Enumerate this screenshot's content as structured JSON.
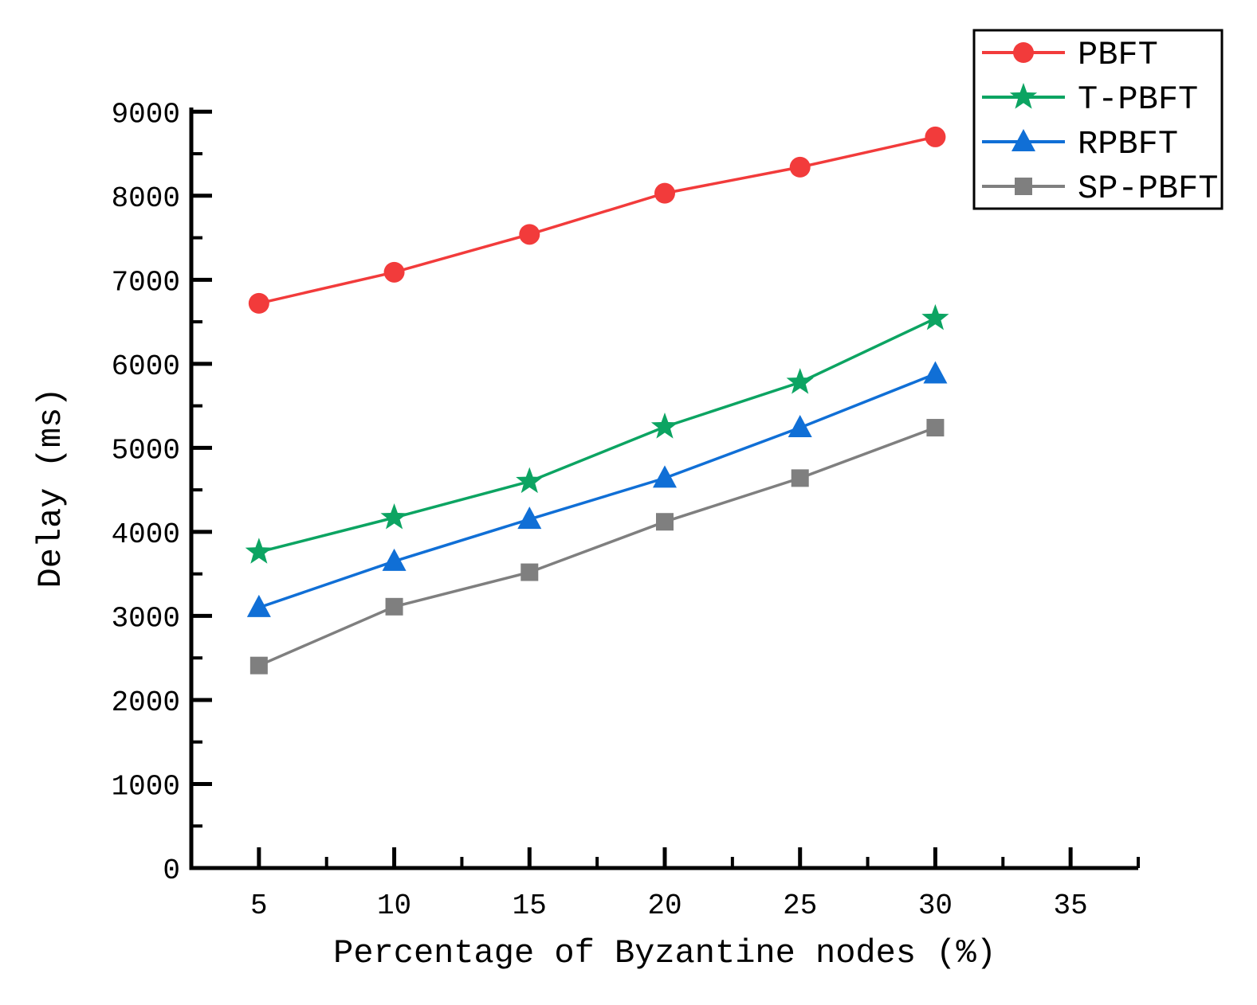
{
  "chart_data": {
    "type": "line",
    "title": "",
    "xlabel": "Percentage of Byzantine nodes (%)",
    "ylabel": "Delay (ms)",
    "x": [
      5,
      10,
      15,
      20,
      25,
      30
    ],
    "series": [
      {
        "name": "PBFT",
        "marker": "circle",
        "color": "#f23b3b",
        "values": [
          6720,
          7090,
          7540,
          8030,
          8340,
          8700
        ]
      },
      {
        "name": "T-PBFT",
        "marker": "star",
        "color": "#0ca462",
        "values": [
          3760,
          4170,
          4600,
          5250,
          5780,
          6540
        ]
      },
      {
        "name": "RPBFT",
        "marker": "triangle",
        "color": "#106fd6",
        "values": [
          3100,
          3650,
          4150,
          4640,
          5240,
          5880
        ]
      },
      {
        "name": "SP-PBFT",
        "marker": "square",
        "color": "#7f7f7f",
        "values": [
          2410,
          3110,
          3520,
          4120,
          4640,
          5240
        ]
      }
    ],
    "xlim": [
      2.5,
      37.5
    ],
    "ylim": [
      0,
      9050
    ],
    "x_ticks": [
      5,
      10,
      15,
      20,
      25,
      30,
      35
    ],
    "x_minor_ticks": [
      7.5,
      12.5,
      17.5,
      22.5,
      27.5,
      32.5,
      37.5
    ],
    "y_ticks": [
      0,
      1000,
      2000,
      3000,
      4000,
      5000,
      6000,
      7000,
      8000,
      9000
    ],
    "y_minor_ticks": [
      500,
      1500,
      2500,
      3500,
      4500,
      5500,
      6500,
      7500,
      8500
    ],
    "grid": false,
    "legend_position": "top-right",
    "axis_color": "#000000",
    "background_color": "#ffffff"
  }
}
